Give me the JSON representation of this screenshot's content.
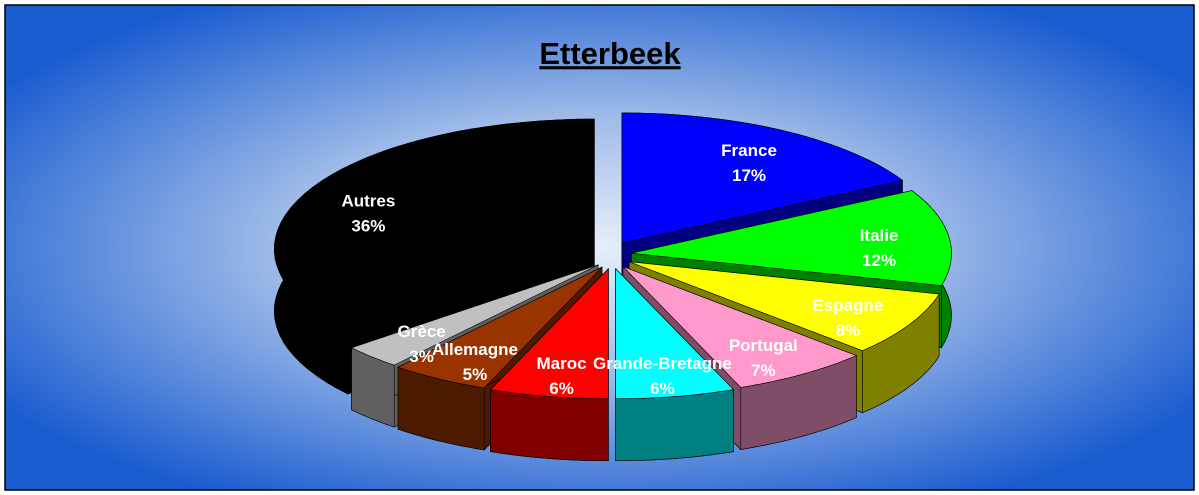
{
  "chart_data": {
    "type": "pie3d",
    "title": "Etterbeek",
    "categories": [
      "France",
      "Italie",
      "Espagne",
      "Portugal",
      "Grande-Bretagne",
      "Maroc",
      "Allemagne",
      "Grèce",
      "Autres"
    ],
    "values": [
      17,
      12,
      8,
      7,
      6,
      6,
      5,
      3,
      36
    ],
    "value_labels": [
      "17%",
      "12%",
      "8%",
      "7%",
      "6%",
      "6%",
      "5%",
      "3%",
      "36%"
    ],
    "colors": [
      "#0000ff",
      "#00ff00",
      "#ffff00",
      "#ff99cc",
      "#00ffff",
      "#ff0000",
      "#993300",
      "#c0c0c0",
      "#000000"
    ]
  }
}
